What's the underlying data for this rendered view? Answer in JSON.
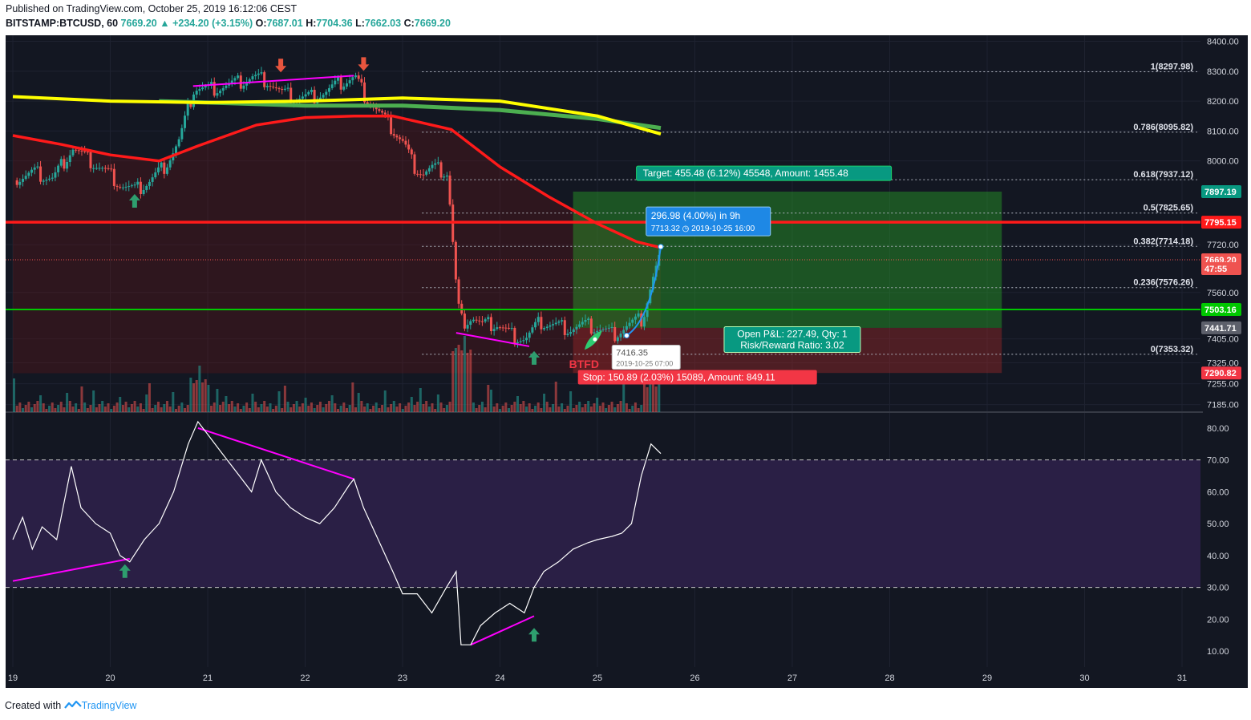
{
  "header": {
    "published": "Published on TradingView.com, October 25, 2019 16:12:06 CEST",
    "symbol": "BITSTAMP:BTCUSD, 60",
    "last": "7669.20",
    "change_arrow": "▲",
    "change": "+234.20 (+3.15%)",
    "o_label": "O:",
    "o": "7687.01",
    "h_label": "H:",
    "h": "7704.36",
    "l_label": "L:",
    "l": "7662.03",
    "c_label": "C:",
    "c": "7669.20"
  },
  "footer": {
    "created_with": "Created with",
    "brand": "TradingView",
    "logo_icon": "tradingview-logo-icon"
  },
  "colors": {
    "background": "#131722",
    "up": "#26a69a",
    "down": "#ef5350",
    "ema_fast": "#ff1a1a",
    "ma_yellow": "#ffff00",
    "ma_green": "#4caf50",
    "rsi": "#ffffff",
    "divergence": "#ff00ff",
    "target": "#089981",
    "stop": "#f23645",
    "label_blue": "#1e88e5",
    "fib": "#b0b5c0"
  },
  "chart_data": {
    "type": "candlestick",
    "x_axis": {
      "ticks": [
        "19",
        "20",
        "21",
        "22",
        "23",
        "24",
        "25",
        "26",
        "27",
        "28",
        "29",
        "30",
        "31"
      ],
      "tick_days": [
        19,
        20,
        21,
        22,
        23,
        24,
        25,
        26,
        27,
        28,
        29,
        30,
        31
      ]
    },
    "price_axis": {
      "range": [
        7160,
        8420
      ],
      "ticks": [
        "8400.00",
        "8300.00",
        "8200.00",
        "8100.00",
        "8000.00",
        "7720.00",
        "7560.00",
        "7405.00",
        "7325.00",
        "7255.00",
        "7185.00"
      ],
      "tick_values": [
        8400,
        8300,
        8200,
        8100,
        8000,
        7720,
        7560,
        7405,
        7325,
        7255,
        7185
      ]
    },
    "price_series": {
      "days": [
        19.0,
        19.2,
        19.4,
        19.6,
        19.75,
        19.9,
        20.0,
        20.1,
        20.25,
        20.4,
        20.55,
        20.7,
        20.85,
        21.0,
        21.15,
        21.3,
        21.45,
        21.6,
        21.75,
        21.9,
        22.05,
        22.2,
        22.35,
        22.5,
        22.6,
        22.7,
        22.8,
        22.9,
        23.0,
        23.1,
        23.2,
        23.3,
        23.45,
        23.55,
        23.6,
        23.7,
        23.8,
        23.95,
        24.1,
        24.25,
        24.4,
        24.55,
        24.7,
        24.85,
        25.0,
        25.15,
        25.3,
        25.45,
        25.55,
        25.65
      ],
      "prices": [
        7935,
        7960,
        7940,
        8045,
        8005,
        7975,
        7950,
        7920,
        7900,
        7935,
        7985,
        8070,
        8245,
        8240,
        8250,
        8260,
        8280,
        8270,
        8225,
        8210,
        8215,
        8230,
        8260,
        8280,
        8220,
        8180,
        8140,
        8100,
        8060,
        7985,
        7960,
        7975,
        7960,
        7525,
        7460,
        7480,
        7450,
        7455,
        7420,
        7405,
        7460,
        7450,
        7440,
        7450,
        7440,
        7420,
        7450,
        7470,
        7600,
        7700
      ]
    },
    "volume_scale": "relative",
    "indicators": [
      {
        "name": "EMA (red)",
        "days": [
          19.0,
          19.5,
          20.0,
          20.5,
          20.9,
          21.5,
          22.0,
          22.5,
          22.9,
          23.5,
          24.0,
          24.5,
          25.0,
          25.4,
          25.65
        ],
        "values": [
          8085,
          8055,
          8020,
          8000,
          8050,
          8120,
          8145,
          8150,
          8150,
          8105,
          7980,
          7880,
          7790,
          7730,
          7710
        ]
      },
      {
        "name": "MA (yellow)",
        "days": [
          19.0,
          20.0,
          21.0,
          22.0,
          22.5,
          23.0,
          24.0,
          25.0,
          25.65
        ],
        "values": [
          8215,
          8200,
          8195,
          8200,
          8205,
          8210,
          8200,
          8150,
          8090
        ]
      },
      {
        "name": "MA (green)",
        "days": [
          20.5,
          21.0,
          22.0,
          22.5,
          23.0,
          24.0,
          25.0,
          25.65
        ],
        "values": [
          8200,
          8195,
          8185,
          8185,
          8185,
          8170,
          8140,
          8110
        ]
      }
    ],
    "horizontal_lines": [
      {
        "price": 7795.15,
        "label": "7795.15",
        "color": "#ff1a1a"
      },
      {
        "price": 7503.16,
        "label": "7503.16",
        "color": "#00c800"
      }
    ],
    "price_badges": [
      {
        "label": "7897.19",
        "price": 7897.19,
        "bg": "#089981"
      },
      {
        "label": "7669.20",
        "price": 7669.2,
        "bg": "#ef5350"
      },
      {
        "label": "47:55",
        "price": 7640,
        "bg": "#ef5350"
      },
      {
        "label": "7441.71",
        "price": 7441.71,
        "bg": "#5d606b"
      },
      {
        "label": "7290.82",
        "price": 7290.82,
        "bg": "#f23645"
      }
    ],
    "fibonacci": [
      {
        "level": "1",
        "value": "8297.98"
      },
      {
        "level": "0.786",
        "value": "8095.82"
      },
      {
        "level": "0.618",
        "value": "7937.12"
      },
      {
        "level": "0.5",
        "value": "7825.65"
      },
      {
        "level": "0.382",
        "value": "7714.18"
      },
      {
        "level": "0.236",
        "value": "7576.26"
      },
      {
        "level": "0",
        "value": "7353.32"
      }
    ],
    "position": {
      "entry": 7441.71,
      "target": 7897.19,
      "stop": 7290.82,
      "target_label": "Target: 455.48 (6.12%) 45548, Amount: 1455.48",
      "stop_label": "Stop: 150.89 (2.03%) 15089, Amount: 849.11",
      "pnl_label": "Open P&L: 227.49, Qty: 1",
      "rr_label": "Risk/Reward Ratio: 3.02"
    },
    "measure": {
      "line1": "296.98 (4.00%) in 9h",
      "line2": "7713.32 ◷ 2019-10-25  16:00"
    },
    "low_note": {
      "price": "7416.35",
      "time": "2019-10-25 07:00"
    },
    "btfd": "BTFD",
    "rsi": {
      "range": [
        5,
        85
      ],
      "ticks": [
        "80.00",
        "70.00",
        "60.00",
        "50.00",
        "40.00",
        "30.00",
        "20.00",
        "10.00"
      ],
      "tick_values": [
        80,
        70,
        60,
        50,
        40,
        30,
        20,
        10
      ],
      "band": [
        30,
        70
      ],
      "days": [
        19.0,
        19.1,
        19.2,
        19.3,
        19.45,
        19.6,
        19.7,
        19.85,
        20.0,
        20.1,
        20.2,
        20.35,
        20.5,
        20.65,
        20.8,
        20.9,
        21.0,
        21.15,
        21.3,
        21.45,
        21.55,
        21.7,
        21.85,
        22.0,
        22.15,
        22.3,
        22.45,
        22.5,
        22.6,
        22.75,
        22.9,
        23.0,
        23.15,
        23.3,
        23.45,
        23.55,
        23.6,
        23.7,
        23.8,
        23.95,
        24.1,
        24.25,
        24.35,
        24.45,
        24.6,
        24.75,
        24.9,
        25.0,
        25.15,
        25.25,
        25.35,
        25.45,
        25.55,
        25.65
      ],
      "values": [
        45,
        52,
        42,
        49,
        45,
        68,
        55,
        50,
        47,
        40,
        38,
        45,
        50,
        60,
        75,
        82,
        78,
        72,
        66,
        60,
        70,
        60,
        55,
        52,
        50,
        55,
        62,
        64,
        55,
        45,
        35,
        28,
        28,
        22,
        30,
        35,
        12,
        12,
        18,
        22,
        25,
        22,
        30,
        35,
        38,
        42,
        44,
        45,
        46,
        47,
        50,
        65,
        75,
        72
      ]
    }
  },
  "divergence_lines": [
    {
      "pane": "price",
      "from": [
        20.85,
        8250
      ],
      "to": [
        22.5,
        8285
      ]
    },
    {
      "pane": "price",
      "from": [
        23.55,
        7425
      ],
      "to": [
        24.3,
        7380
      ]
    },
    {
      "pane": "rsi",
      "from": [
        19.0,
        32
      ],
      "to": [
        20.2,
        39
      ]
    },
    {
      "pane": "rsi",
      "from": [
        20.9,
        80
      ],
      "to": [
        22.5,
        64
      ]
    },
    {
      "pane": "rsi",
      "from": [
        23.7,
        12
      ],
      "to": [
        24.35,
        21
      ]
    }
  ],
  "signals": [
    {
      "pane": "price",
      "day": 20.25,
      "price": 7865,
      "dir": "up",
      "icon": "arrow-up-icon"
    },
    {
      "pane": "price",
      "day": 21.75,
      "price": 8320,
      "dir": "down",
      "icon": "arrow-down-icon"
    },
    {
      "pane": "price",
      "day": 22.6,
      "price": 8325,
      "dir": "down",
      "icon": "arrow-down-icon"
    },
    {
      "pane": "price",
      "day": 24.35,
      "price": 7340,
      "dir": "up",
      "icon": "arrow-up-icon"
    },
    {
      "pane": "rsi",
      "day": 20.15,
      "value": 35,
      "dir": "up",
      "icon": "arrow-up-icon"
    },
    {
      "pane": "rsi",
      "day": 24.35,
      "value": 15,
      "dir": "up",
      "icon": "arrow-up-icon"
    }
  ]
}
